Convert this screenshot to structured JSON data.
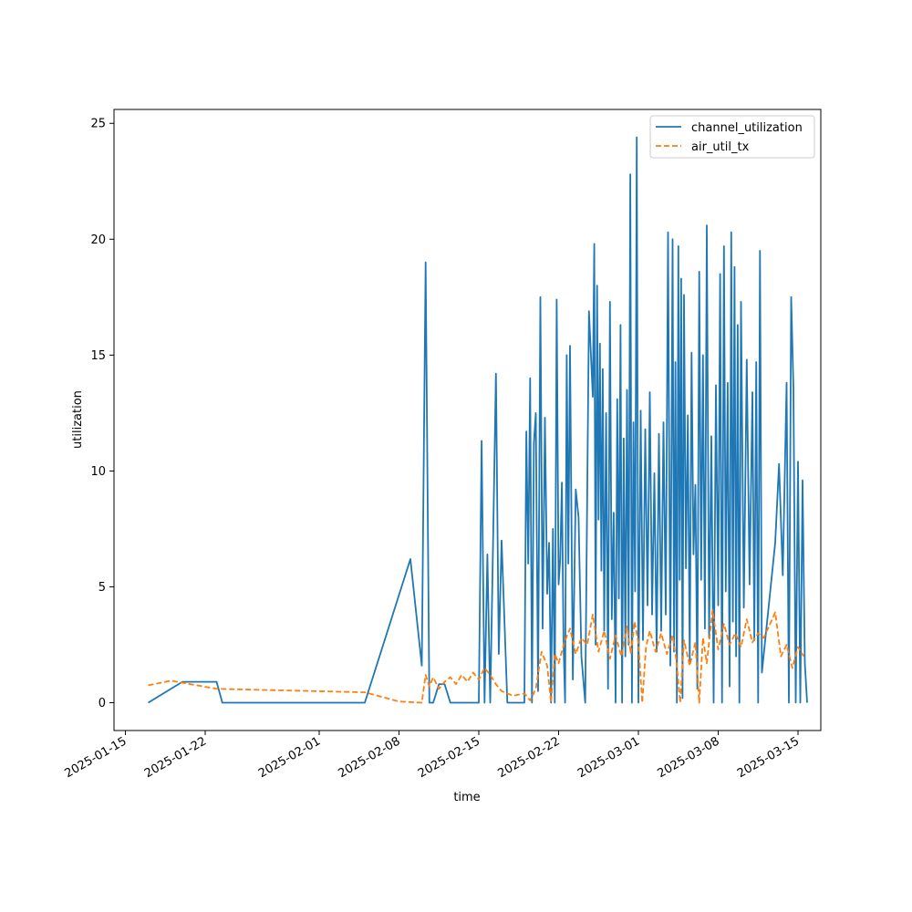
{
  "chart_data": {
    "type": "line",
    "title": "",
    "xlabel": "time",
    "ylabel": "utilization",
    "x_axis_type": "date",
    "xlim": [
      "2025-01-14",
      "2025-03-17"
    ],
    "ylim": [
      -1.2,
      25.6
    ],
    "x_ticks": [
      "2025-01-15",
      "2025-01-22",
      "2025-02-01",
      "2025-02-08",
      "2025-02-15",
      "2025-02-22",
      "2025-03-01",
      "2025-03-08",
      "2025-03-15"
    ],
    "y_ticks": [
      0,
      5,
      10,
      15,
      20,
      25
    ],
    "grid": false,
    "legend_position": "top-right",
    "series": [
      {
        "name": "channel_utilization",
        "color": "#1f77b4",
        "style": "solid",
        "points": [
          [
            "2025-01-17",
            0.0
          ],
          [
            "2025-01-20",
            0.9
          ],
          [
            "2025-01-23",
            0.9
          ],
          [
            "2025-01-23",
            0.0
          ],
          [
            "2025-02-05",
            0.0
          ],
          [
            "2025-02-09",
            6.2
          ],
          [
            "2025-02-10",
            1.6
          ],
          [
            "2025-02-10",
            19.0
          ],
          [
            "2025-02-10",
            0.0
          ],
          [
            "2025-02-11",
            0.0
          ],
          [
            "2025-02-11",
            0.8
          ],
          [
            "2025-02-12",
            0.8
          ],
          [
            "2025-02-12",
            0.0
          ],
          [
            "2025-02-15",
            0.0
          ],
          [
            "2025-02-15",
            11.3
          ],
          [
            "2025-02-15",
            0.0
          ],
          [
            "2025-02-15",
            6.4
          ],
          [
            "2025-02-16",
            0.0
          ],
          [
            "2025-02-16",
            6.8
          ],
          [
            "2025-02-16",
            14.2
          ],
          [
            "2025-02-16",
            2.1
          ],
          [
            "2025-02-17",
            7.0
          ],
          [
            "2025-02-17",
            0.0
          ],
          [
            "2025-02-18",
            0.0
          ],
          [
            "2025-02-19",
            0.0
          ],
          [
            "2025-02-19",
            11.7
          ],
          [
            "2025-02-19",
            6.0
          ],
          [
            "2025-02-19",
            14.0
          ],
          [
            "2025-02-19",
            0.0
          ],
          [
            "2025-02-19",
            11.2
          ],
          [
            "2025-02-20",
            12.5
          ],
          [
            "2025-02-20",
            0.5
          ],
          [
            "2025-02-20",
            17.5
          ],
          [
            "2025-02-20",
            3.2
          ],
          [
            "2025-02-20",
            12.3
          ],
          [
            "2025-02-21",
            4.7
          ],
          [
            "2025-02-21",
            6.9
          ],
          [
            "2025-02-21",
            0.0
          ],
          [
            "2025-02-21",
            7.5
          ],
          [
            "2025-02-21",
            0.0
          ],
          [
            "2025-02-21",
            17.4
          ],
          [
            "2025-02-22",
            5.1
          ],
          [
            "2025-02-22",
            6.2
          ],
          [
            "2025-02-22",
            9.5
          ],
          [
            "2025-02-22",
            2.6
          ],
          [
            "2025-02-22",
            0.0
          ],
          [
            "2025-02-22",
            15.0
          ],
          [
            "2025-02-22",
            6.0
          ],
          [
            "2025-02-23",
            15.4
          ],
          [
            "2025-02-23",
            1.0
          ],
          [
            "2025-02-23",
            9.2
          ],
          [
            "2025-02-23",
            8.0
          ],
          [
            "2025-02-24",
            2.0
          ],
          [
            "2025-02-24",
            0.0
          ],
          [
            "2025-02-24",
            16.9
          ],
          [
            "2025-02-25",
            13.2
          ],
          [
            "2025-02-25",
            19.8
          ],
          [
            "2025-02-25",
            2.5
          ],
          [
            "2025-02-25",
            18.0
          ],
          [
            "2025-02-25",
            7.9
          ],
          [
            "2025-02-25",
            15.5
          ],
          [
            "2025-02-25",
            5.7
          ],
          [
            "2025-02-25",
            14.4
          ],
          [
            "2025-02-26",
            3.1
          ],
          [
            "2025-02-26",
            12.5
          ],
          [
            "2025-02-26",
            0.6
          ],
          [
            "2025-02-26",
            17.3
          ],
          [
            "2025-02-26",
            3.6
          ],
          [
            "2025-02-26",
            8.2
          ],
          [
            "2025-02-27",
            0.0
          ],
          [
            "2025-02-27",
            13.1
          ],
          [
            "2025-02-27",
            4.5
          ],
          [
            "2025-02-27",
            16.3
          ],
          [
            "2025-02-27",
            0.0
          ],
          [
            "2025-02-27",
            11.4
          ],
          [
            "2025-02-27",
            2.0
          ],
          [
            "2025-02-28",
            13.5
          ],
          [
            "2025-02-28",
            2.5
          ],
          [
            "2025-02-28",
            22.8
          ],
          [
            "2025-02-28",
            0.0
          ],
          [
            "2025-02-28",
            12.1
          ],
          [
            "2025-02-28",
            4.8
          ],
          [
            "2025-02-28",
            24.4
          ],
          [
            "2025-03-01",
            0.0
          ],
          [
            "2025-03-01",
            12.6
          ],
          [
            "2025-03-01",
            2.7
          ],
          [
            "2025-03-01",
            11.8
          ],
          [
            "2025-03-01",
            4.2
          ],
          [
            "2025-03-02",
            13.4
          ],
          [
            "2025-03-02",
            3.8
          ],
          [
            "2025-03-02",
            9.9
          ],
          [
            "2025-03-02",
            2.2
          ],
          [
            "2025-03-02",
            11.6
          ],
          [
            "2025-03-03",
            3.1
          ],
          [
            "2025-03-03",
            12.1
          ],
          [
            "2025-03-03",
            3.8
          ],
          [
            "2025-03-03",
            20.3
          ],
          [
            "2025-03-03",
            1.6
          ],
          [
            "2025-03-04",
            20.0
          ],
          [
            "2025-03-04",
            2.2
          ],
          [
            "2025-03-04",
            14.7
          ],
          [
            "2025-03-04",
            0.0
          ],
          [
            "2025-03-04",
            19.7
          ],
          [
            "2025-03-04",
            5.3
          ],
          [
            "2025-03-04",
            18.3
          ],
          [
            "2025-03-04",
            0.2
          ],
          [
            "2025-03-05",
            17.6
          ],
          [
            "2025-03-05",
            5.8
          ],
          [
            "2025-03-05",
            12.4
          ],
          [
            "2025-03-05",
            1.7
          ],
          [
            "2025-03-05",
            15.1
          ],
          [
            "2025-03-05",
            6.4
          ],
          [
            "2025-03-06",
            9.4
          ],
          [
            "2025-03-06",
            0.6
          ],
          [
            "2025-03-06",
            18.6
          ],
          [
            "2025-03-06",
            5.3
          ],
          [
            "2025-03-06",
            15.0
          ],
          [
            "2025-03-06",
            3.2
          ],
          [
            "2025-03-07",
            20.6
          ],
          [
            "2025-03-07",
            2.8
          ],
          [
            "2025-03-07",
            11.5
          ],
          [
            "2025-03-07",
            0.0
          ],
          [
            "2025-03-07",
            13.7
          ],
          [
            "2025-03-08",
            4.2
          ],
          [
            "2025-03-08",
            18.5
          ],
          [
            "2025-03-08",
            0.0
          ],
          [
            "2025-03-08",
            19.7
          ],
          [
            "2025-03-08",
            4.8
          ],
          [
            "2025-03-08",
            13.8
          ],
          [
            "2025-03-09",
            0.7
          ],
          [
            "2025-03-09",
            20.3
          ],
          [
            "2025-03-09",
            3.5
          ],
          [
            "2025-03-09",
            18.8
          ],
          [
            "2025-03-09",
            2.0
          ],
          [
            "2025-03-09",
            16.3
          ],
          [
            "2025-03-09",
            0.0
          ],
          [
            "2025-03-10",
            17.3
          ],
          [
            "2025-03-10",
            4.1
          ],
          [
            "2025-03-10",
            14.8
          ],
          [
            "2025-03-10",
            5.1
          ],
          [
            "2025-03-11",
            13.4
          ],
          [
            "2025-03-11",
            2.7
          ],
          [
            "2025-03-11",
            14.7
          ],
          [
            "2025-03-11",
            0.0
          ],
          [
            "2025-03-11",
            19.5
          ],
          [
            "2025-03-11",
            1.3
          ],
          [
            "2025-03-13",
            6.9
          ],
          [
            "2025-03-13",
            10.3
          ],
          [
            "2025-03-13",
            5.5
          ],
          [
            "2025-03-14",
            13.8
          ],
          [
            "2025-03-14",
            0.0
          ],
          [
            "2025-03-14",
            17.5
          ],
          [
            "2025-03-14",
            13.6
          ],
          [
            "2025-03-14",
            0.0
          ],
          [
            "2025-03-15",
            10.4
          ],
          [
            "2025-03-15",
            0.0
          ],
          [
            "2025-03-15",
            9.6
          ],
          [
            "2025-03-15",
            1.7
          ],
          [
            "2025-03-15",
            0.0
          ]
        ]
      },
      {
        "name": "air_util_tx",
        "color": "#ff7f0e",
        "style": "dashed",
        "points": [
          [
            "2025-01-17",
            0.75
          ],
          [
            "2025-01-19",
            0.95
          ],
          [
            "2025-01-23",
            0.6
          ],
          [
            "2025-02-05",
            0.45
          ],
          [
            "2025-02-08",
            0.05
          ],
          [
            "2025-02-10",
            0.0
          ],
          [
            "2025-02-10",
            1.2
          ],
          [
            "2025-02-10",
            0.7
          ],
          [
            "2025-02-11",
            1.1
          ],
          [
            "2025-02-11",
            0.6
          ],
          [
            "2025-02-12",
            0.9
          ],
          [
            "2025-02-12",
            1.1
          ],
          [
            "2025-02-13",
            0.8
          ],
          [
            "2025-02-13",
            1.2
          ],
          [
            "2025-02-14",
            0.9
          ],
          [
            "2025-02-14",
            1.3
          ],
          [
            "2025-02-15",
            1.0
          ],
          [
            "2025-02-15",
            1.5
          ],
          [
            "2025-02-16",
            1.2
          ],
          [
            "2025-02-16",
            0.8
          ],
          [
            "2025-02-17",
            0.5
          ],
          [
            "2025-02-18",
            0.3
          ],
          [
            "2025-02-19",
            0.4
          ],
          [
            "2025-02-19",
            0.1
          ],
          [
            "2025-02-20",
            0.6
          ],
          [
            "2025-02-20",
            2.2
          ],
          [
            "2025-02-21",
            1.6
          ],
          [
            "2025-02-21",
            0.0
          ],
          [
            "2025-02-21",
            2.1
          ],
          [
            "2025-02-22",
            1.7
          ],
          [
            "2025-02-22",
            2.6
          ],
          [
            "2025-02-23",
            3.2
          ],
          [
            "2025-02-23",
            2.1
          ],
          [
            "2025-02-24",
            2.8
          ],
          [
            "2025-02-24",
            2.5
          ],
          [
            "2025-02-25",
            3.8
          ],
          [
            "2025-02-25",
            2.2
          ],
          [
            "2025-02-26",
            3.1
          ],
          [
            "2025-02-26",
            1.9
          ],
          [
            "2025-02-27",
            2.9
          ],
          [
            "2025-02-27",
            2.0
          ],
          [
            "2025-02-28",
            3.3
          ],
          [
            "2025-02-28",
            2.1
          ],
          [
            "2025-02-28",
            3.5
          ],
          [
            "2025-03-01",
            2.6
          ],
          [
            "2025-03-01",
            0.0
          ],
          [
            "2025-03-01",
            2.4
          ],
          [
            "2025-03-02",
            3.1
          ],
          [
            "2025-03-02",
            2.2
          ],
          [
            "2025-03-03",
            3.0
          ],
          [
            "2025-03-03",
            2.1
          ],
          [
            "2025-03-04",
            2.9
          ],
          [
            "2025-03-04",
            1.8
          ],
          [
            "2025-03-04",
            0.0
          ],
          [
            "2025-03-05",
            2.7
          ],
          [
            "2025-03-05",
            1.6
          ],
          [
            "2025-03-06",
            2.6
          ],
          [
            "2025-03-06",
            0.0
          ],
          [
            "2025-03-06",
            2.8
          ],
          [
            "2025-03-07",
            1.7
          ],
          [
            "2025-03-07",
            4.0
          ],
          [
            "2025-03-08",
            2.3
          ],
          [
            "2025-03-08",
            3.4
          ],
          [
            "2025-03-09",
            2.5
          ],
          [
            "2025-03-09",
            3.0
          ],
          [
            "2025-03-10",
            2.4
          ],
          [
            "2025-03-10",
            3.6
          ],
          [
            "2025-03-11",
            2.6
          ],
          [
            "2025-03-11",
            3.0
          ],
          [
            "2025-03-12",
            2.8
          ],
          [
            "2025-03-13",
            3.9
          ],
          [
            "2025-03-13",
            2.0
          ],
          [
            "2025-03-14",
            2.5
          ],
          [
            "2025-03-14",
            1.5
          ],
          [
            "2025-03-15",
            2.4
          ],
          [
            "2025-03-15",
            2.0
          ]
        ]
      }
    ]
  }
}
